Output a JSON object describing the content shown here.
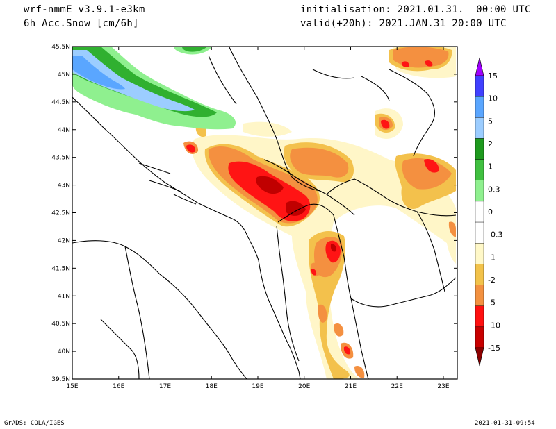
{
  "header": {
    "model": "wrf-nmmE_v3.9.1-e3km",
    "field": "6h Acc.Snow [cm/6h]",
    "init": "initialisation: 2021.01.31.  00:00 UTC",
    "valid": "valid(+20h): 2021.JAN.31 20:00 UTC"
  },
  "footer": {
    "credit": "GrADS: COLA/IGES",
    "timestamp": "2021-01-31-09:54"
  },
  "map": {
    "lon_ticks": [
      "15E",
      "16E",
      "17E",
      "18E",
      "19E",
      "20E",
      "21E",
      "22E",
      "23E"
    ],
    "lat_ticks": [
      "45.5N",
      "45N",
      "44.5N",
      "44N",
      "43.5N",
      "43N",
      "42.5N",
      "42N",
      "41.5N",
      "41N",
      "40.5N",
      "40N",
      "39.5N"
    ],
    "lon_range": [
      15,
      23.3
    ],
    "lat_range": [
      39.5,
      45.5
    ]
  },
  "colorbar": {
    "labels": [
      "15",
      "10",
      "5",
      "2",
      "1",
      "0.3",
      "0",
      "-0.3",
      "-1",
      "-2",
      "-5",
      "-10",
      "-15"
    ],
    "bands": [
      {
        "color": "#a000ff"
      },
      {
        "color": "#4040ff"
      },
      {
        "color": "#5aa6ff"
      },
      {
        "color": "#9ccdff"
      },
      {
        "color": "#1e9a1e"
      },
      {
        "color": "#40c040"
      },
      {
        "color": "#8ff08f"
      },
      {
        "color": "#ffffff"
      },
      {
        "color": "#ffffff"
      },
      {
        "color": "#fff8c8"
      },
      {
        "color": "#f2c24a"
      },
      {
        "color": "#f39140"
      },
      {
        "color": "#ff1010"
      },
      {
        "color": "#c80000"
      },
      {
        "color": "#8c0000"
      }
    ]
  },
  "palette": {
    "pale_yellow": "#fff6c8",
    "yellow": "#f3c14c",
    "orange": "#f49040",
    "red": "#ff1414",
    "dark_red": "#c00000",
    "light_green": "#8ff08f",
    "green": "#30b030",
    "light_blue": "#9ccdff",
    "blue": "#5aa6ff"
  }
}
